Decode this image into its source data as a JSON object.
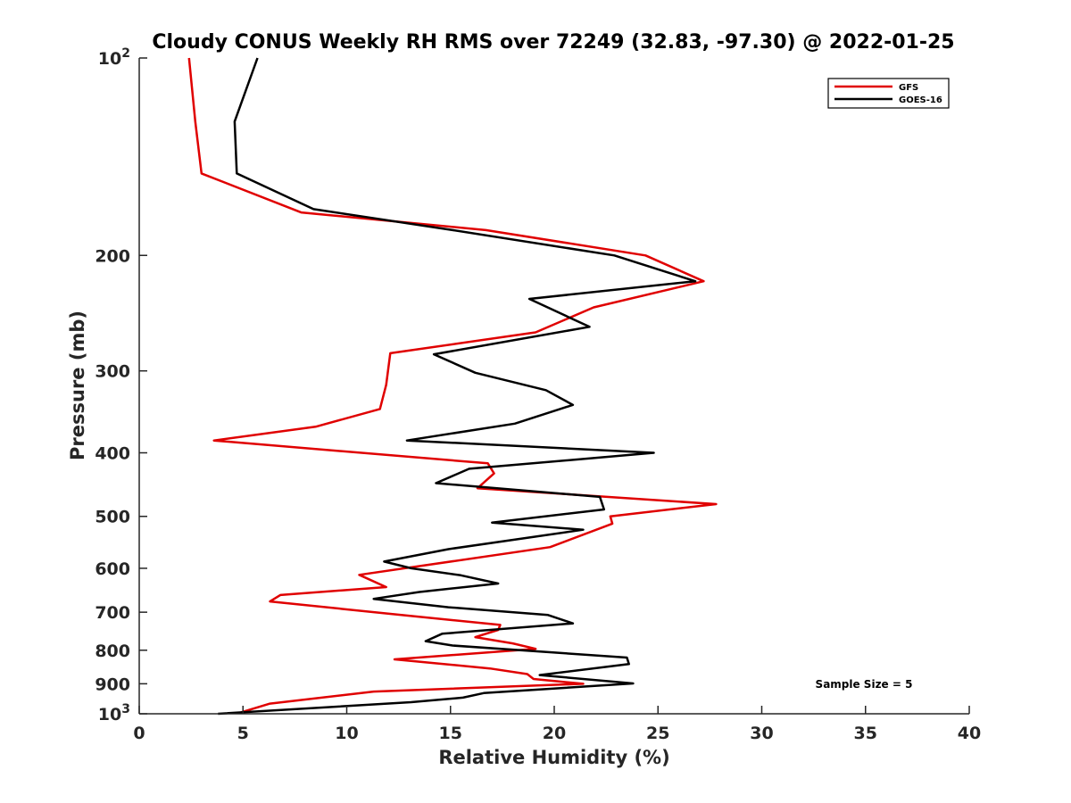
{
  "chart_data": {
    "type": "line",
    "title": "Cloudy CONUS Weekly RH RMS over 72249 (32.83, -97.30) @ 2022-01-25",
    "xlabel": "Relative Humidity (%)",
    "ylabel": "Pressure (mb)",
    "xlim": [
      0,
      40
    ],
    "ylim": [
      100,
      1000
    ],
    "y_scale": "log",
    "y_reversed": true,
    "grid": false,
    "legend_position": "top-right",
    "x_ticks": [
      0,
      5,
      10,
      15,
      20,
      25,
      30,
      35,
      40
    ],
    "x_tick_labels": [
      "0",
      "5",
      "10",
      "15",
      "20",
      "25",
      "30",
      "35",
      "40"
    ],
    "y_ticks": [
      100,
      200,
      300,
      400,
      500,
      600,
      700,
      800,
      900,
      1000
    ],
    "y_tick_labels": [
      {
        "base": "10",
        "exp": "2"
      },
      {
        "base": "200",
        "exp": ""
      },
      {
        "base": "300",
        "exp": ""
      },
      {
        "base": "400",
        "exp": ""
      },
      {
        "base": "500",
        "exp": ""
      },
      {
        "base": "600",
        "exp": ""
      },
      {
        "base": "700",
        "exp": ""
      },
      {
        "base": "800",
        "exp": ""
      },
      {
        "base": "900",
        "exp": ""
      },
      {
        "base": "10",
        "exp": "3"
      }
    ],
    "annotation": "Sample Size = 5",
    "series": [
      {
        "name": "GFS",
        "color": "#e00000",
        "points": [
          [
            2.4,
            100
          ],
          [
            2.7,
            125
          ],
          [
            3.0,
            150
          ],
          [
            7.8,
            172
          ],
          [
            16.7,
            183
          ],
          [
            24.4,
            200
          ],
          [
            27.2,
            219
          ],
          [
            21.9,
            240
          ],
          [
            19.1,
            262
          ],
          [
            12.1,
            282
          ],
          [
            11.9,
            315
          ],
          [
            11.6,
            343
          ],
          [
            8.5,
            365
          ],
          [
            3.6,
            383
          ],
          [
            16.8,
            415
          ],
          [
            17.1,
            430
          ],
          [
            16.3,
            453
          ],
          [
            27.8,
            479
          ],
          [
            22.7,
            500
          ],
          [
            22.8,
            513
          ],
          [
            19.8,
            557
          ],
          [
            10.6,
            614
          ],
          [
            11.9,
            641
          ],
          [
            6.8,
            659
          ],
          [
            6.3,
            674
          ],
          [
            12.1,
            704
          ],
          [
            17.4,
            732
          ],
          [
            17.3,
            745
          ],
          [
            16.2,
            764
          ],
          [
            18.0,
            781
          ],
          [
            19.1,
            796
          ],
          [
            12.3,
            826
          ],
          [
            16.9,
            853
          ],
          [
            18.7,
            870
          ],
          [
            19.0,
            885
          ],
          [
            21.4,
            900
          ],
          [
            11.3,
            925
          ],
          [
            6.3,
            965
          ],
          [
            4.9,
            995
          ]
        ]
      },
      {
        "name": "GOES-16",
        "color": "#000000",
        "points": [
          [
            5.7,
            100
          ],
          [
            4.6,
            125
          ],
          [
            4.7,
            150
          ],
          [
            8.4,
            170
          ],
          [
            15.1,
            183
          ],
          [
            22.9,
            200
          ],
          [
            26.8,
            219
          ],
          [
            18.8,
            233
          ],
          [
            21.7,
            257
          ],
          [
            14.2,
            283
          ],
          [
            16.2,
            302
          ],
          [
            19.6,
            321
          ],
          [
            20.9,
            338
          ],
          [
            18.1,
            361
          ],
          [
            12.9,
            383
          ],
          [
            24.8,
            400
          ],
          [
            15.9,
            423
          ],
          [
            14.3,
            445
          ],
          [
            22.2,
            467
          ],
          [
            22.4,
            488
          ],
          [
            17.0,
            511
          ],
          [
            21.4,
            524
          ],
          [
            14.9,
            561
          ],
          [
            11.8,
            586
          ],
          [
            13.1,
            600
          ],
          [
            15.5,
            615
          ],
          [
            17.3,
            633
          ],
          [
            13.5,
            652
          ],
          [
            11.3,
            668
          ],
          [
            14.9,
            688
          ],
          [
            19.7,
            707
          ],
          [
            20.9,
            728
          ],
          [
            14.6,
            755
          ],
          [
            13.8,
            775
          ],
          [
            15.1,
            787
          ],
          [
            23.5,
            821
          ],
          [
            23.6,
            840
          ],
          [
            19.3,
            873
          ],
          [
            23.8,
            899
          ],
          [
            16.6,
            930
          ],
          [
            15.6,
            945
          ],
          [
            13.1,
            960
          ],
          [
            3.8,
            1000
          ]
        ]
      }
    ]
  }
}
